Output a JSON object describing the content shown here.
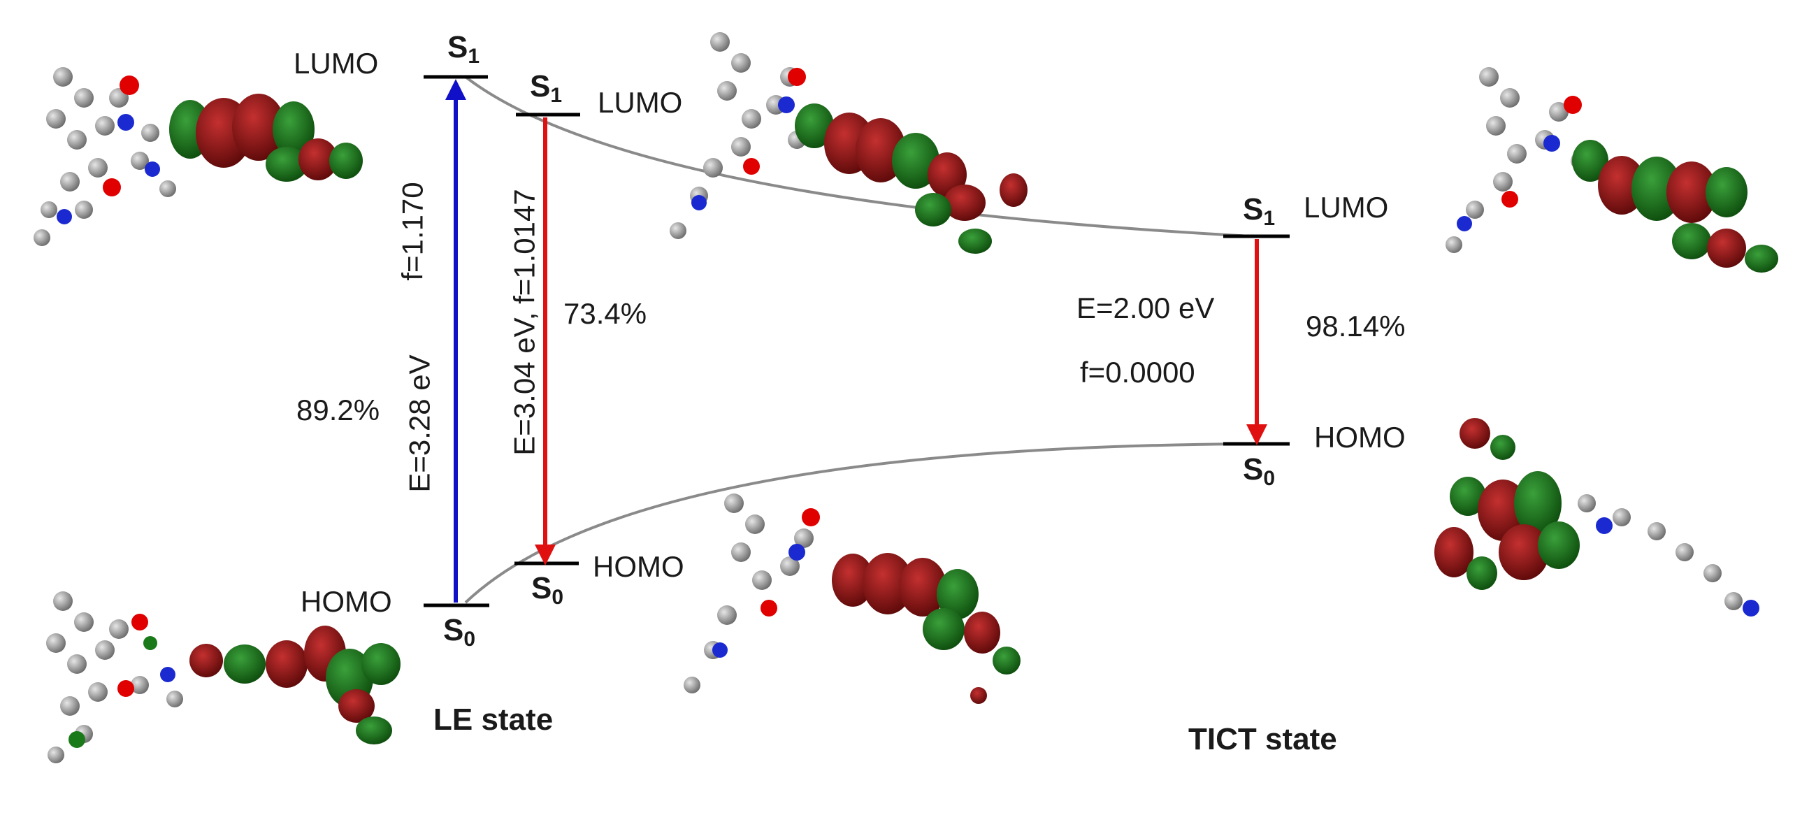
{
  "labels": {
    "lumo": "LUMO",
    "homo": "HOMO",
    "s1": "S",
    "s0": "S",
    "sub1": "1",
    "sub0": "0"
  },
  "le_absorption": {
    "f": "f=1.170",
    "energy": "E=3.28 eV",
    "percent": "89.2%"
  },
  "le_emission": {
    "energy_f": "E=3.04 eV, f=1.0147",
    "percent": "73.4%"
  },
  "tict": {
    "energy": "E=2.00 eV",
    "f": "f=0.0000",
    "percent": "98.14%"
  },
  "states": {
    "le": "LE state",
    "tict": "TICT state"
  },
  "colors": {
    "absorption_arrow": "#1010c8",
    "emission_arrow": "#e01010",
    "curve": "#8a8a8a",
    "orbital_positive": "#8b1010",
    "orbital_negative": "#1a7a1a",
    "atom_carbon": "#9a9a9a",
    "atom_nitrogen": "#1a2ad0",
    "atom_oxygen": "#e00000"
  }
}
